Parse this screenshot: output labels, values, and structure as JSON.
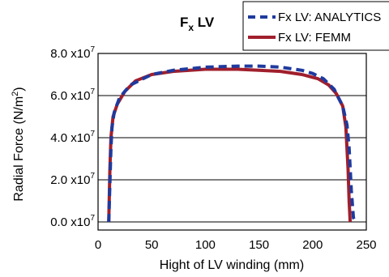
{
  "chart_data": {
    "type": "line",
    "title": "F",
    "title_subscript": "x",
    "title_suffix": " LV",
    "xlabel": "Hight of LV winding  (mm)",
    "ylabel_main": "Radial Force  (N/m",
    "ylabel_sup": "2",
    "ylabel_end": ")",
    "xlim": [
      0,
      250
    ],
    "ylim": [
      0,
      8.0
    ],
    "x_ticks": [
      {
        "value": 0,
        "label": "0"
      },
      {
        "value": 50,
        "label": "50"
      },
      {
        "value": 100,
        "label": "100"
      },
      {
        "value": 150,
        "label": "150"
      },
      {
        "value": 200,
        "label": "200"
      },
      {
        "value": 250,
        "label": "250"
      }
    ],
    "y_ticks": [
      {
        "value": 0.0,
        "base": "0.0 x10",
        "exp": "7"
      },
      {
        "value": 2.0,
        "base": "2.0 x10",
        "exp": "7"
      },
      {
        "value": 4.0,
        "base": "4.0 x10",
        "exp": "7"
      },
      {
        "value": 6.0,
        "base": "6.0 x10",
        "exp": "7"
      },
      {
        "value": 8.0,
        "base": "8.0 x10",
        "exp": "7"
      }
    ],
    "grid": "horizontal",
    "legend_position": "top-right",
    "series": [
      {
        "name": "Fx LV: ANALYTICS",
        "color": "#1f3a9e",
        "dash": "dashed",
        "x": [
          10,
          12,
          13,
          15,
          20,
          30,
          50,
          70,
          100,
          130,
          150,
          170,
          190,
          200,
          210,
          220,
          228,
          232,
          234,
          236,
          238,
          240
        ],
        "y": [
          0.0,
          3.5,
          4.5,
          5.2,
          5.9,
          6.5,
          7.0,
          7.2,
          7.35,
          7.4,
          7.4,
          7.35,
          7.2,
          7.05,
          6.8,
          6.3,
          5.5,
          4.6,
          3.5,
          1.5,
          0.2,
          0.0
        ]
      },
      {
        "name": "Fx LV: FEMM",
        "color": "#a01f2c",
        "dash": "solid",
        "x": [
          10,
          11,
          12,
          14,
          18,
          25,
          35,
          50,
          70,
          100,
          130,
          150,
          170,
          190,
          205,
          215,
          222,
          228,
          231,
          233,
          234,
          235
        ],
        "y": [
          0.0,
          2.5,
          4.0,
          5.0,
          5.6,
          6.2,
          6.7,
          7.0,
          7.15,
          7.25,
          7.25,
          7.2,
          7.15,
          7.0,
          6.8,
          6.5,
          6.1,
          5.5,
          4.5,
          2.5,
          1.0,
          0.0
        ]
      }
    ]
  }
}
